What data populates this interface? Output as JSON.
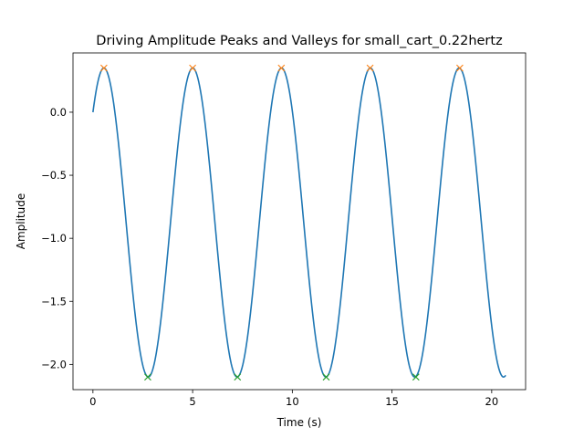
{
  "chart_data": {
    "type": "line",
    "title": "Driving Amplitude Peaks and Valleys for small_cart_0.22hertz",
    "xlabel": "Time (s)",
    "ylabel": "Amplitude",
    "xlim": [
      -1.0,
      21.7
    ],
    "ylim": [
      -2.2,
      0.47
    ],
    "x_ticks": [
      0,
      5,
      10,
      15,
      20
    ],
    "x_tick_labels": [
      "0",
      "5",
      "10",
      "15",
      "20"
    ],
    "y_ticks": [
      0.0,
      -0.5,
      -1.0,
      -1.5,
      -2.0
    ],
    "y_tick_labels": [
      "0.0",
      "−0.5",
      "−1.0",
      "−1.5",
      "−2.0"
    ],
    "grid": false,
    "legend": "none",
    "signal": {
      "x_start": 0.0,
      "x_end": 20.7,
      "mean": -0.875,
      "amplitude": 1.225,
      "frequency_hz": 0.2245,
      "first_peak_time": 0.55,
      "color": "#1f77b4"
    },
    "series": [
      {
        "marker": "x",
        "color": "#ff7f0e",
        "x": [
          0.55,
          5.0,
          9.45,
          13.9,
          18.4
        ],
        "y": [
          0.35,
          0.35,
          0.35,
          0.35,
          0.35
        ]
      },
      {
        "marker": "x",
        "color": "#2ca02c",
        "x": [
          2.75,
          7.25,
          11.7,
          16.2
        ],
        "y": [
          -2.1,
          -2.1,
          -2.1,
          -2.1
        ]
      }
    ]
  }
}
